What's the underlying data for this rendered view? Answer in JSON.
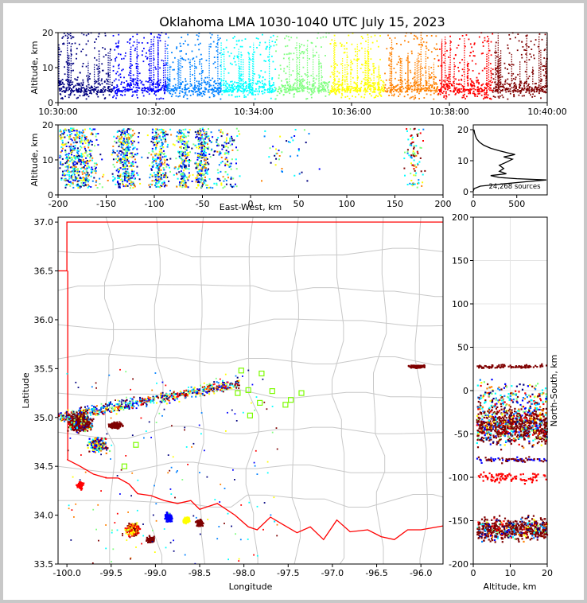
{
  "chart_data": {
    "type": "scatter",
    "title": "Oklahoma LMA 1030-1040 UTC July 15, 2023",
    "colors": [
      "#00007f",
      "#0000ff",
      "#0080ff",
      "#00ffff",
      "#7fff7f",
      "#ffff00",
      "#ff8000",
      "#ff0000",
      "#7f0000"
    ],
    "boundary_color": "#ff0000",
    "county_color": "#c8c8c8",
    "time_height": {
      "ylabel": "Altitude, km",
      "ylim": [
        0,
        20
      ],
      "yticks": [
        "0",
        "10",
        "20"
      ],
      "xticks": [
        "10:30:00",
        "10:32:00",
        "10:34:00",
        "10:36:00",
        "10:38:00",
        "10:40:00"
      ]
    },
    "ew_alt": {
      "xlabel": "East-West, km",
      "ylabel": "Altitude, km",
      "xlim": [
        -200,
        200
      ],
      "ylim": [
        0,
        20
      ],
      "xticks": [
        "-200",
        "-150",
        "-100",
        "-50",
        "0",
        "50",
        "100",
        "150",
        "200"
      ],
      "yticks": [
        "0",
        "10",
        "20"
      ]
    },
    "histogram": {
      "xlim": [
        0,
        850
      ],
      "ylim": [
        0,
        20
      ],
      "xticks": [
        "0",
        "500"
      ],
      "yticks": [
        "0",
        "10",
        "20"
      ],
      "annotation": "24,268 sources",
      "profile": [
        [
          0,
          0.2
        ],
        [
          10,
          1
        ],
        [
          80,
          1.8
        ],
        [
          300,
          2.4
        ],
        [
          600,
          3.2
        ],
        [
          840,
          3.8
        ],
        [
          500,
          4.2
        ],
        [
          300,
          4.6
        ],
        [
          200,
          5.2
        ],
        [
          380,
          5.8
        ],
        [
          300,
          6.6
        ],
        [
          350,
          7.5
        ],
        [
          300,
          8.5
        ],
        [
          380,
          9.5
        ],
        [
          450,
          10.5
        ],
        [
          350,
          11.2
        ],
        [
          480,
          12
        ],
        [
          400,
          12.5
        ],
        [
          300,
          13.2
        ],
        [
          200,
          14
        ],
        [
          120,
          15
        ],
        [
          70,
          16
        ],
        [
          40,
          17
        ],
        [
          25,
          18
        ],
        [
          15,
          19
        ],
        [
          8,
          20
        ]
      ]
    },
    "plan": {
      "xlabel": "Longitude",
      "ylabel": "Latitude",
      "xlim": [
        -100.1,
        -95.75
      ],
      "ylim": [
        33.5,
        37.05
      ],
      "xticks": [
        "-100.0",
        "-99.5",
        "-99.0",
        "-98.5",
        "-98.0",
        "-97.5",
        "-97.0",
        "-96.5",
        "-96.0"
      ],
      "yticks": [
        "33.5",
        "34.0",
        "34.5",
        "35.0",
        "35.5",
        "36.0",
        "36.5",
        "37.0"
      ],
      "stations": [
        [
          -98.03,
          35.48
        ],
        [
          -97.8,
          35.45
        ],
        [
          -97.95,
          35.28
        ],
        [
          -97.68,
          35.27
        ],
        [
          -98.07,
          35.25
        ],
        [
          -97.35,
          35.25
        ],
        [
          -97.47,
          35.18
        ],
        [
          -97.53,
          35.13
        ],
        [
          -97.82,
          35.15
        ],
        [
          -97.93,
          35.02
        ],
        [
          -99.22,
          34.72
        ],
        [
          -99.35,
          34.5
        ]
      ]
    },
    "ns_alt": {
      "xlabel": "Altitude, km",
      "ylabel": "North-South, km",
      "xlim": [
        0,
        20
      ],
      "ylim": [
        -200,
        200
      ],
      "xticks": [
        "0",
        "10",
        "20"
      ],
      "yticks": [
        "-200",
        "-150",
        "-100",
        "-50",
        "0",
        "50",
        "100",
        "150",
        "200"
      ]
    }
  }
}
